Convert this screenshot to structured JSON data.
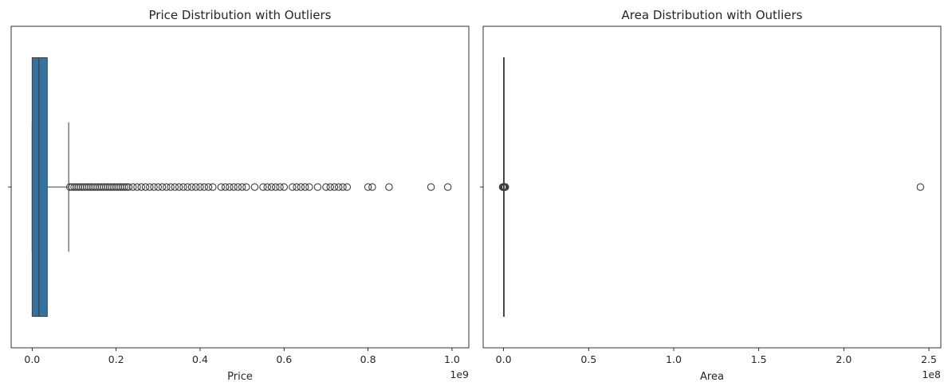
{
  "chart_data": [
    {
      "type": "boxplot",
      "title": "Price Distribution with Outliers",
      "xlabel": "Price",
      "ylabel": "",
      "x_offset_label": "1e9",
      "x_scale": 1000000000,
      "xlim": [
        -0.05,
        1.04
      ],
      "xticks": [
        0.0,
        0.2,
        0.4,
        0.6,
        0.8,
        1.0
      ],
      "xtick_labels": [
        "0.0",
        "0.2",
        "0.4",
        "0.6",
        "0.8",
        "1.0"
      ],
      "box": {
        "whisker_low": 0.0,
        "q1": 0.0,
        "median": 0.016,
        "q3": 0.036,
        "whisker_high": 0.087
      },
      "outliers": [
        0.09,
        0.095,
        0.1,
        0.105,
        0.11,
        0.115,
        0.12,
        0.125,
        0.13,
        0.135,
        0.14,
        0.145,
        0.15,
        0.155,
        0.16,
        0.165,
        0.17,
        0.175,
        0.18,
        0.185,
        0.19,
        0.195,
        0.2,
        0.205,
        0.21,
        0.215,
        0.22,
        0.225,
        0.23,
        0.24,
        0.25,
        0.26,
        0.27,
        0.28,
        0.29,
        0.3,
        0.31,
        0.32,
        0.33,
        0.34,
        0.35,
        0.36,
        0.37,
        0.38,
        0.39,
        0.4,
        0.41,
        0.42,
        0.43,
        0.45,
        0.46,
        0.47,
        0.48,
        0.49,
        0.5,
        0.51,
        0.53,
        0.55,
        0.56,
        0.57,
        0.58,
        0.59,
        0.6,
        0.62,
        0.63,
        0.64,
        0.65,
        0.66,
        0.68,
        0.7,
        0.71,
        0.72,
        0.73,
        0.74,
        0.75,
        0.8,
        0.81,
        0.85,
        0.95,
        0.99
      ],
      "color": "#3274a1"
    },
    {
      "type": "boxplot",
      "title": "Area Distribution with Outliers",
      "xlabel": "Area",
      "ylabel": "",
      "x_offset_label": "1e8",
      "x_scale": 100000000,
      "xlim": [
        -0.12,
        2.57
      ],
      "xticks": [
        0.0,
        0.5,
        1.0,
        1.5,
        2.0,
        2.5
      ],
      "xtick_labels": [
        "0.0",
        "0.5",
        "1.0",
        "1.5",
        "2.0",
        "2.5"
      ],
      "box": {
        "whisker_low": 0.0,
        "q1": 0.0,
        "median": 0.0,
        "q3": 0.0,
        "whisker_high": 0.0
      },
      "outliers": [
        -0.005,
        -0.002,
        0.0,
        0.002,
        0.004,
        0.006,
        0.008,
        0.01,
        2.45
      ],
      "color": "#3274a1"
    }
  ]
}
